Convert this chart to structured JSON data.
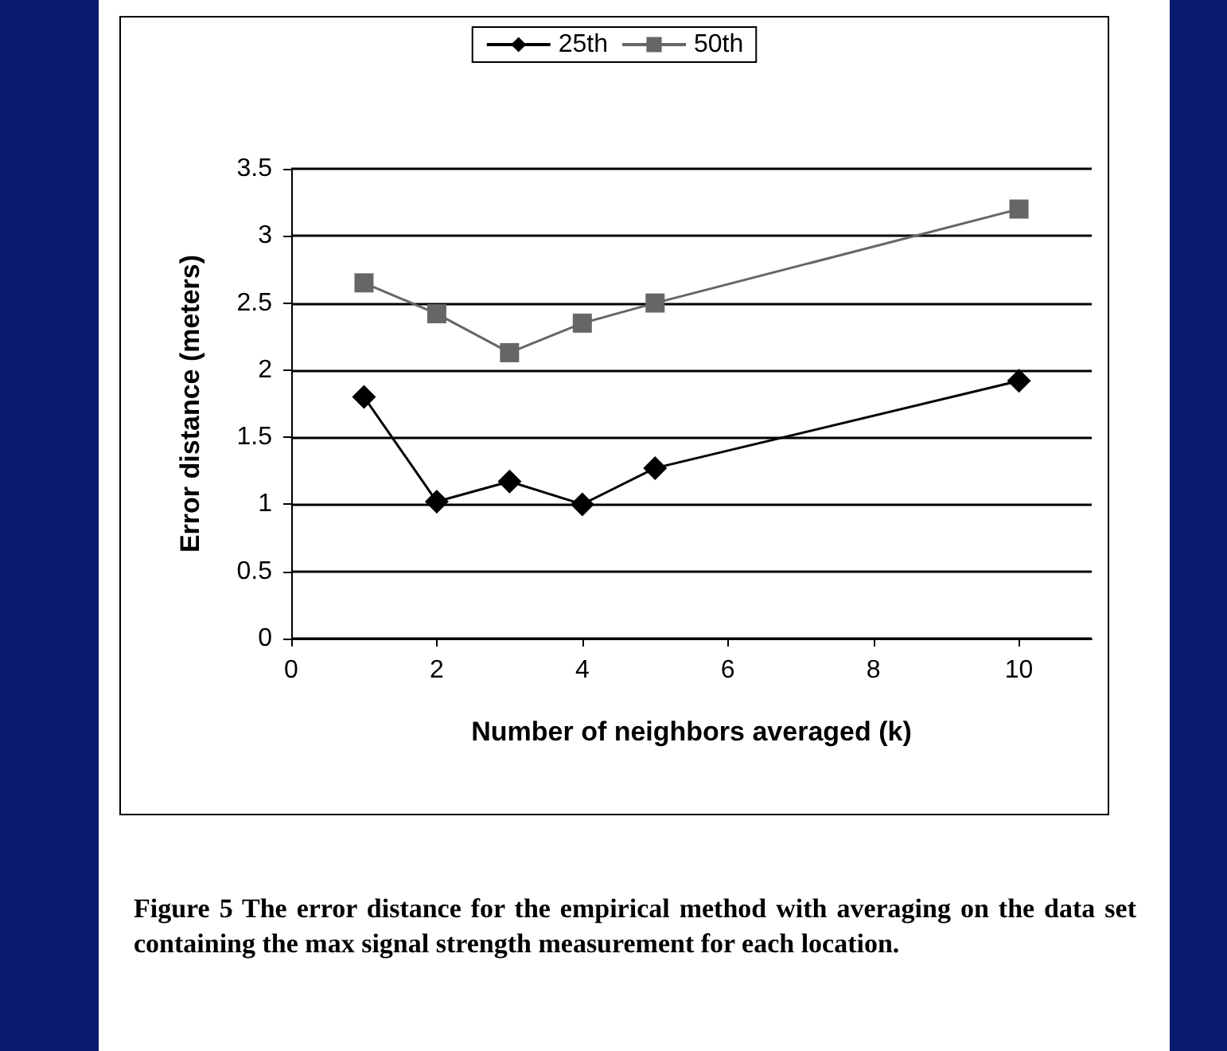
{
  "chart_data": {
    "type": "line",
    "xlabel": "Number of neighbors averaged (k)",
    "ylabel": "Error distance (meters)",
    "x": [
      1,
      2,
      3,
      4,
      5,
      10
    ],
    "series": [
      {
        "name": "25th",
        "color": "#000000",
        "marker": "diamond",
        "values": [
          1.8,
          1.02,
          1.17,
          1.0,
          1.27,
          1.92
        ]
      },
      {
        "name": "50th",
        "color": "#666666",
        "marker": "square",
        "values": [
          2.65,
          2.42,
          2.13,
          2.35,
          2.5,
          3.2
        ]
      }
    ],
    "xlim": [
      0,
      11
    ],
    "xticks": [
      0,
      2,
      4,
      6,
      8,
      10
    ],
    "ylim": [
      0,
      3.5
    ],
    "yticks": [
      0,
      0.5,
      1,
      1.5,
      2,
      2.5,
      3,
      3.5
    ],
    "grid": "y",
    "legend": "top",
    "annotations": [
      "Figure 5 The error distance for the empirical method with averaging on the data set containing the max signal strength measurement for each location."
    ]
  }
}
